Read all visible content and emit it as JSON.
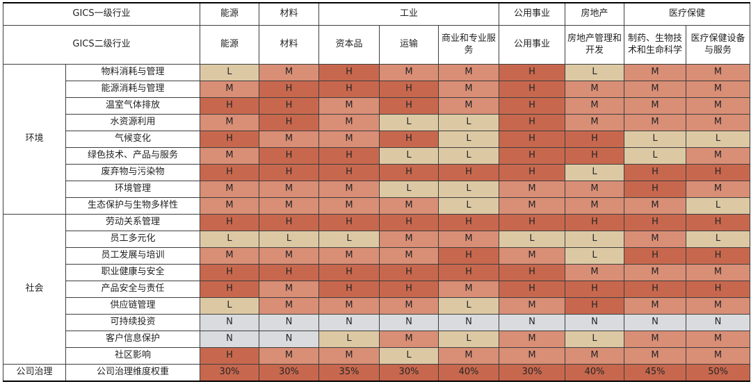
{
  "chart_data": {
    "type": "heatmap",
    "corner_labels": {
      "level1": "GICS一级行业",
      "level2": "GICS二级行业"
    },
    "level1_headers": [
      {
        "label": "能源",
        "span": 1
      },
      {
        "label": "材料",
        "span": 1
      },
      {
        "label": "工业",
        "span": 3
      },
      {
        "label": "公用事业",
        "span": 1
      },
      {
        "label": "房地产",
        "span": 1
      },
      {
        "label": "医疗保健",
        "span": 2
      }
    ],
    "level2_headers": [
      "能源",
      "材料",
      "资本品",
      "运输",
      "商业和专业服务",
      "公用事业",
      "房地产管理和开发",
      "制药、生物技术和生命科学",
      "医疗保健设备与服务"
    ],
    "value_scale": [
      "H",
      "M",
      "L",
      "N"
    ],
    "value_colors": {
      "H": "#C7684E",
      "M": "#D98E76",
      "L": "#DCC9A4",
      "N": "#D9DBDE",
      "W": "#C7684E"
    },
    "sections": [
      {
        "name": "环境",
        "rows": [
          {
            "label": "物料消耗与管理",
            "values": [
              "L",
              "M",
              "H",
              "M",
              "M",
              "H",
              "L",
              "M",
              "M"
            ]
          },
          {
            "label": "能源消耗与管理",
            "values": [
              "M",
              "H",
              "H",
              "H",
              "M",
              "H",
              "M",
              "M",
              "M"
            ]
          },
          {
            "label": "温室气体排放",
            "values": [
              "H",
              "H",
              "M",
              "H",
              "M",
              "H",
              "M",
              "M",
              "M"
            ]
          },
          {
            "label": "水资源利用",
            "values": [
              "M",
              "H",
              "M",
              "L",
              "L",
              "H",
              "M",
              "M",
              "M"
            ]
          },
          {
            "label": "气候变化",
            "values": [
              "H",
              "M",
              "M",
              "H",
              "L",
              "H",
              "H",
              "L",
              "L"
            ]
          },
          {
            "label": "绿色技术、产品与服务",
            "values": [
              "M",
              "H",
              "H",
              "L",
              "L",
              "H",
              "H",
              "L",
              "M"
            ]
          },
          {
            "label": "废弃物与污染物",
            "values": [
              "H",
              "H",
              "H",
              "H",
              "H",
              "H",
              "L",
              "H",
              "H"
            ]
          },
          {
            "label": "环境管理",
            "values": [
              "M",
              "M",
              "M",
              "L",
              "L",
              "M",
              "M",
              "H",
              "M"
            ]
          },
          {
            "label": "生态保护与生物多样性",
            "values": [
              "M",
              "M",
              "M",
              "M",
              "L",
              "M",
              "M",
              "M",
              "L"
            ]
          }
        ]
      },
      {
        "name": "社会",
        "rows": [
          {
            "label": "劳动关系管理",
            "values": [
              "H",
              "H",
              "H",
              "H",
              "H",
              "H",
              "H",
              "H",
              "H"
            ]
          },
          {
            "label": "员工多元化",
            "values": [
              "L",
              "L",
              "L",
              "M",
              "M",
              "L",
              "L",
              "M",
              "L"
            ]
          },
          {
            "label": "员工发展与培训",
            "values": [
              "M",
              "M",
              "M",
              "M",
              "H",
              "M",
              "L",
              "H",
              "H"
            ]
          },
          {
            "label": "职业健康与安全",
            "values": [
              "H",
              "H",
              "H",
              "H",
              "H",
              "H",
              "M",
              "M",
              "M"
            ]
          },
          {
            "label": "产品安全与责任",
            "values": [
              "H",
              "M",
              "H",
              "H",
              "M",
              "H",
              "H",
              "H",
              "H"
            ]
          },
          {
            "label": "供应链管理",
            "values": [
              "L",
              "M",
              "M",
              "M",
              "L",
              "M",
              "H",
              "M",
              "M"
            ]
          },
          {
            "label": "可持续投资",
            "values": [
              "N",
              "N",
              "N",
              "N",
              "N",
              "N",
              "N",
              "N",
              "N"
            ]
          },
          {
            "label": "客户信息保护",
            "values": [
              "N",
              "N",
              "L",
              "M",
              "L",
              "M",
              "L",
              "M",
              "M"
            ]
          },
          {
            "label": "社区影响",
            "values": [
              "H",
              "M",
              "M",
              "L",
              "M",
              "M",
              "M",
              "M",
              "M"
            ]
          }
        ]
      },
      {
        "name": "公司治理",
        "rows": [
          {
            "label": "公司治理维度权重",
            "values": [
              "30%",
              "30%",
              "35%",
              "30%",
              "40%",
              "30%",
              "40%",
              "45%",
              "50%"
            ]
          }
        ]
      }
    ]
  }
}
